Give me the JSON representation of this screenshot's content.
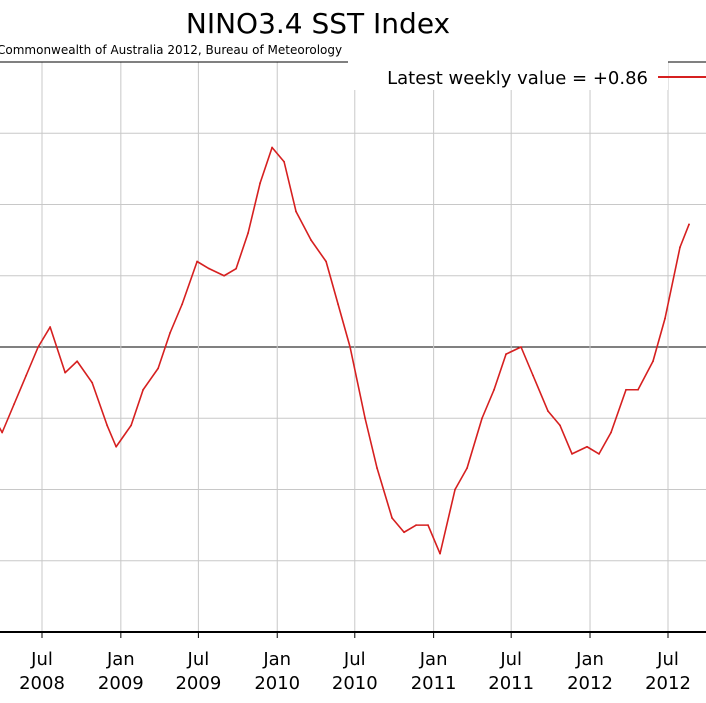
{
  "chart_data": {
    "type": "line",
    "title": "NINO3.4 SST Index",
    "subtitle": "Commonwealth of Australia 2012, Bureau of Meteorology",
    "legend_text": "Latest weekly value = +0.86",
    "legend_placement": "top-right",
    "grid": true,
    "zero_line": true,
    "line_color": "#d62020",
    "xlabels": [
      {
        "month": "Jul",
        "year": "2008",
        "x": "2008-07-01"
      },
      {
        "month": "Jan",
        "year": "2009",
        "x": "2009-01-01"
      },
      {
        "month": "Jul",
        "year": "2009",
        "x": "2009-07-01"
      },
      {
        "month": "Jan",
        "year": "2010",
        "x": "2010-01-01"
      },
      {
        "month": "Jul",
        "year": "2010",
        "x": "2010-07-01"
      },
      {
        "month": "Jan",
        "year": "2011",
        "x": "2011-01-01"
      },
      {
        "month": "Jul",
        "year": "2011",
        "x": "2011-07-01"
      },
      {
        "month": "Jan",
        "year": "2012",
        "x": "2012-01-01"
      },
      {
        "month": "Jul",
        "year": "2012",
        "x": "2012-07-01"
      }
    ],
    "series": [
      {
        "values": [
          {
            "x": "2008-03-02",
            "y": -0.45
          },
          {
            "x": "2008-03-30",
            "y": -0.6
          },
          {
            "x": "2008-04-27",
            "y": -0.4
          },
          {
            "x": "2008-05-25",
            "y": -0.2
          },
          {
            "x": "2008-06-22",
            "y": 0.0
          },
          {
            "x": "2008-07-20",
            "y": 0.14
          },
          {
            "x": "2008-08-24",
            "y": -0.18
          },
          {
            "x": "2008-09-21",
            "y": -0.1
          },
          {
            "x": "2008-10-26",
            "y": -0.25
          },
          {
            "x": "2008-11-30",
            "y": -0.55
          },
          {
            "x": "2008-12-21",
            "y": -0.7
          },
          {
            "x": "2009-01-25",
            "y": -0.55
          },
          {
            "x": "2009-02-22",
            "y": -0.3
          },
          {
            "x": "2009-03-29",
            "y": -0.15
          },
          {
            "x": "2009-04-26",
            "y": 0.1
          },
          {
            "x": "2009-05-24",
            "y": 0.3
          },
          {
            "x": "2009-06-28",
            "y": 0.6
          },
          {
            "x": "2009-07-26",
            "y": 0.55
          },
          {
            "x": "2009-08-30",
            "y": 0.5
          },
          {
            "x": "2009-09-27",
            "y": 0.55
          },
          {
            "x": "2009-10-25",
            "y": 0.8
          },
          {
            "x": "2009-11-22",
            "y": 1.15
          },
          {
            "x": "2009-12-20",
            "y": 1.4
          },
          {
            "x": "2010-01-17",
            "y": 1.3
          },
          {
            "x": "2010-02-14",
            "y": 0.95
          },
          {
            "x": "2010-03-21",
            "y": 0.75
          },
          {
            "x": "2010-04-25",
            "y": 0.6
          },
          {
            "x": "2010-05-23",
            "y": 0.3
          },
          {
            "x": "2010-06-20",
            "y": 0.0
          },
          {
            "x": "2010-07-25",
            "y": -0.5
          },
          {
            "x": "2010-08-22",
            "y": -0.85
          },
          {
            "x": "2010-09-26",
            "y": -1.2
          },
          {
            "x": "2010-10-24",
            "y": -1.3
          },
          {
            "x": "2010-11-21",
            "y": -1.25
          },
          {
            "x": "2010-12-19",
            "y": -1.25
          },
          {
            "x": "2011-01-16",
            "y": -1.45
          },
          {
            "x": "2011-02-20",
            "y": -1.0
          },
          {
            "x": "2011-03-20",
            "y": -0.85
          },
          {
            "x": "2011-04-24",
            "y": -0.5
          },
          {
            "x": "2011-05-22",
            "y": -0.3
          },
          {
            "x": "2011-06-19",
            "y": -0.05
          },
          {
            "x": "2011-07-24",
            "y": 0.0
          },
          {
            "x": "2011-08-21",
            "y": -0.2
          },
          {
            "x": "2011-09-25",
            "y": -0.45
          },
          {
            "x": "2011-10-23",
            "y": -0.55
          },
          {
            "x": "2011-11-20",
            "y": -0.75
          },
          {
            "x": "2011-12-25",
            "y": -0.7
          },
          {
            "x": "2012-01-22",
            "y": -0.75
          },
          {
            "x": "2012-02-19",
            "y": -0.6
          },
          {
            "x": "2012-03-25",
            "y": -0.3
          },
          {
            "x": "2012-04-22",
            "y": -0.3
          },
          {
            "x": "2012-05-27",
            "y": -0.1
          },
          {
            "x": "2012-06-24",
            "y": 0.2
          },
          {
            "x": "2012-07-29",
            "y": 0.7
          },
          {
            "x": "2012-08-19",
            "y": 0.86
          }
        ]
      }
    ]
  }
}
